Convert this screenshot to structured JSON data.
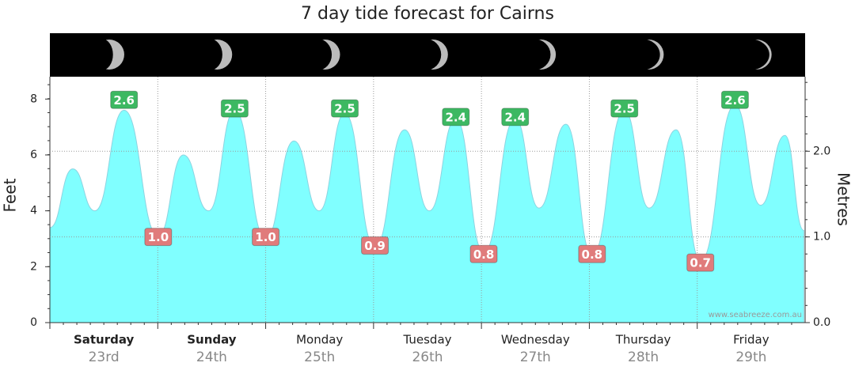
{
  "chart_data": {
    "type": "area",
    "title": "7 day tide forecast for Cairns",
    "ylabel": "Feet",
    "y2label": "Metres",
    "xlim": [
      0,
      168
    ],
    "ylim": [
      0,
      8.8
    ],
    "yticks": [
      0,
      2,
      4,
      6,
      8
    ],
    "y2lim": [
      0,
      2.87
    ],
    "y2ticks": [
      {
        "value": 0,
        "label": "0.0"
      },
      {
        "value": 1,
        "label": "1.0"
      },
      {
        "value": 2,
        "label": "2.0"
      }
    ],
    "categories": [
      "Saturday",
      "Sunday",
      "Monday",
      "Tuesday",
      "Wednesday",
      "Thursday",
      "Friday"
    ],
    "dates": [
      "23rd",
      "24th",
      "25th",
      "26th",
      "27th",
      "28th",
      "29th"
    ],
    "series": [
      {
        "color": "#80ffff",
        "x": [
          0,
          5.1,
          10.0,
          16.5,
          24.1,
          29.7,
          35.3,
          41.1,
          48.0,
          54.3,
          59.9,
          65.6,
          72.3,
          78.9,
          84.4,
          90.3,
          96.5,
          103.5,
          108.8,
          114.8,
          120.6,
          127.8,
          133.3,
          139.3,
          144.7,
          152.4,
          158.1,
          163.5,
          167.7
        ],
        "values": [
          3.4,
          5.5,
          4.0,
          7.6,
          3.1,
          6.0,
          4.0,
          7.6,
          3.0,
          6.5,
          4.0,
          7.5,
          2.7,
          6.9,
          4.0,
          7.3,
          2.5,
          7.3,
          4.1,
          7.1,
          2.4,
          7.6,
          4.1,
          6.9,
          2.2,
          7.8,
          4.2,
          6.7,
          3.3
        ]
      },
      {
        "axis": "y2",
        "color": "#3db862",
        "x": [
          16.5,
          41.1,
          65.6,
          90.3,
          103.5,
          127.8,
          152.4
        ],
        "values": [
          2.6,
          2.5,
          2.5,
          2.4,
          2.4,
          2.5,
          2.6
        ]
      },
      {
        "axis": "y2",
        "color": "#e07b7b",
        "x": [
          24.1,
          48.0,
          72.3,
          96.5,
          120.6,
          144.7
        ],
        "values": [
          1,
          1,
          0.9,
          0.8,
          0.8,
          0.7
        ],
        "value_labels": [
          "1.0",
          "1.0",
          "0.9",
          "0.8",
          "0.8",
          "0.7"
        ]
      }
    ],
    "watermark": "www.seabreeze.com.au"
  }
}
